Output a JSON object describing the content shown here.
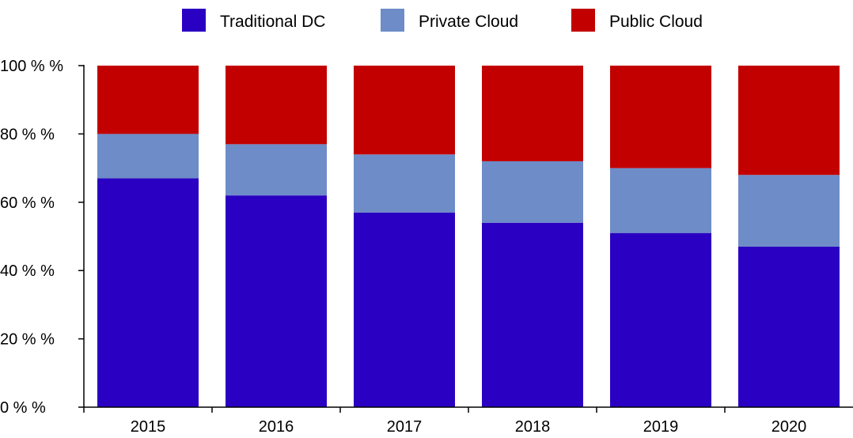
{
  "chart_data": {
    "type": "bar",
    "stacked": true,
    "categories": [
      "2015",
      "2016",
      "2017",
      "2018",
      "2019",
      "2020"
    ],
    "series": [
      {
        "name": "Traditional DC",
        "color": "#2a00c2",
        "values": [
          67,
          62,
          57,
          54,
          51,
          47
        ]
      },
      {
        "name": "Private Cloud",
        "color": "#6d8cc8",
        "values": [
          13,
          15,
          17,
          18,
          19,
          21
        ]
      },
      {
        "name": "Public Cloud",
        "color": "#c20000",
        "values": [
          20,
          23,
          26,
          28,
          30,
          32
        ]
      }
    ],
    "ylim": [
      0,
      100
    ],
    "yticks": [
      0,
      20,
      40,
      60,
      80,
      100
    ],
    "ytick_labels": [
      "0 % %",
      "20 % %",
      "40 % %",
      "60 % %",
      "80 % %",
      "100 % %"
    ],
    "grid": false,
    "legend_position": "top"
  }
}
